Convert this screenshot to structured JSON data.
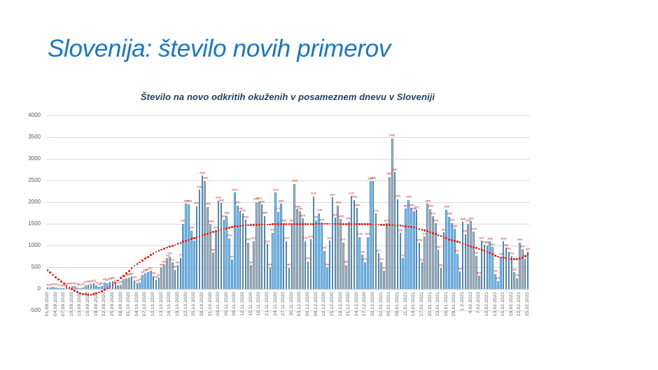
{
  "slide": {
    "title": "Slovenija: število novih primerov"
  },
  "chart_data": {
    "type": "bar",
    "title": "Število na novo odkritih okuženih v posameznem dnevu v Sloveniji",
    "xlabel": "",
    "ylabel": "",
    "ylim": [
      -500,
      4000
    ],
    "grid": true,
    "legend": false,
    "yticks": [
      4000,
      3500,
      3000,
      2500,
      2000,
      1500,
      1000,
      500,
      0,
      -500
    ],
    "x_tick_every": 3,
    "x_tick_labels": [
      "01.09.2020",
      "04.09.2020",
      "07.09.2020",
      "10.09.2020",
      "13.09.2020",
      "16.09.2020",
      "19.09.2020",
      "22.09.2020",
      "25.09.2020",
      "28.09.2020",
      "01.10.2020",
      "04.10.2020",
      "07.10.2020",
      "10.10.2020",
      "13.10.2020",
      "16.10.2020",
      "19.10.2020",
      "22.10.2020",
      "25.10.2020",
      "28.10.2020",
      "31.10.2020",
      "03.11.2020",
      "06.11.2020",
      "09.11.2020",
      "12.11.2020",
      "15.11.2020",
      "18.11.2020",
      "21.11.2020",
      "24.11.2020",
      "27.11.2020",
      "30.11.2020",
      "03.12.2020",
      "06.12.2020",
      "09.12.2020",
      "12.12.2020",
      "15.12.2020",
      "18.12.2020",
      "21.12.2020",
      "24.12.2020",
      "27.12.2020",
      "30.12.2020",
      "02.01.2021",
      "05.01.2021",
      "08.01.2021",
      "11.01.2021",
      "14.01.2021",
      "17.01.2021",
      "20.01.2021",
      "23.01.2021",
      "26.01.2021",
      "29.01.2021",
      "1.2.2021",
      "4.02.2022",
      "7.02.2022",
      "10.02.2021",
      "13.02.2021",
      "16.02.2021",
      "19.02.2021",
      "22.02.2021",
      "25.02.2021"
    ],
    "values": [
      30,
      29,
      43,
      37,
      21,
      14,
      16,
      53,
      49,
      57,
      62,
      38,
      22,
      34,
      87,
      98,
      111,
      123,
      74,
      46,
      58,
      146,
      137,
      168,
      183,
      119,
      73,
      95,
      218,
      242,
      260,
      287,
      194,
      123,
      146,
      321,
      356,
      387,
      412,
      298,
      205,
      257,
      498,
      564,
      708,
      745,
      612,
      437,
      541,
      717,
      1503,
      1964,
      1954,
      1344,
      1106,
      1904,
      2286,
      2606,
      2484,
      1892,
      1498,
      834,
      1341,
      2039,
      1983,
      1602,
      1682,
      1167,
      672,
      2223,
      1921,
      1787,
      1737,
      1590,
      1067,
      544,
      1100,
      2004,
      2022,
      1945,
      1685,
      1027,
      498,
      1296,
      2222,
      1779,
      1964,
      1506,
      1102,
      487,
      1508,
      2425,
      1834,
      1784,
      1625,
      1102,
      632,
      1140,
      2133,
      1587,
      1743,
      1529,
      875,
      498,
      1107,
      2107,
      1641,
      1925,
      1606,
      1071,
      549,
      1549,
      2142,
      2056,
      1869,
      1196,
      784,
      620,
      1201,
      2480,
      2488,
      1741,
      817,
      613,
      412,
      1512,
      2585,
      3468,
      2687,
      2069,
      1287,
      706,
      1851,
      2052,
      1868,
      1786,
      1821,
      1058,
      612,
      1209,
      1965,
      1842,
      1673,
      1516,
      903,
      481,
      1305,
      1828,
      1668,
      1521,
      1385,
      812,
      403,
      1548,
      1263,
      1501,
      1561,
      1318,
      762,
      303,
      1107,
      1012,
      1006,
      1096,
      962,
      342,
      178,
      726,
      1093,
      948,
      861,
      754,
      383,
      248,
      1069,
      912,
      694,
      847
    ],
    "bar_labels_shown": true,
    "trend": {
      "type": "dotted-trendline",
      "color": "#F8160C",
      "points": [
        [
          0,
          430
        ],
        [
          4,
          215
        ],
        [
          8,
          25
        ],
        [
          12,
          -110
        ],
        [
          16,
          -140
        ],
        [
          20,
          -60
        ],
        [
          24,
          90
        ],
        [
          28,
          300
        ],
        [
          32,
          530
        ],
        [
          36,
          700
        ],
        [
          40,
          855
        ],
        [
          44,
          950
        ],
        [
          47,
          1015
        ],
        [
          50,
          1085
        ],
        [
          53,
          1150
        ],
        [
          56,
          1210
        ],
        [
          60,
          1290
        ],
        [
          64,
          1370
        ],
        [
          68,
          1430
        ],
        [
          72,
          1462
        ],
        [
          76,
          1478
        ],
        [
          85,
          1490
        ],
        [
          95,
          1497
        ],
        [
          105,
          1498
        ],
        [
          112,
          1496
        ],
        [
          118,
          1490
        ],
        [
          124,
          1478
        ],
        [
          130,
          1457
        ],
        [
          135,
          1420
        ],
        [
          140,
          1330
        ],
        [
          145,
          1215
        ],
        [
          148,
          1140
        ],
        [
          151,
          1090
        ],
        [
          155,
          1000
        ],
        [
          160,
          900
        ],
        [
          163,
          830
        ],
        [
          166,
          740
        ],
        [
          169,
          700
        ],
        [
          171,
          688
        ],
        [
          173,
          690
        ],
        [
          175,
          715
        ],
        [
          176,
          750
        ],
        [
          177,
          800
        ]
      ]
    },
    "colors": {
      "bar_fill": "#A9C9E8",
      "bar_border": "#4E87C0",
      "bar_label": "#C00000",
      "trend_dot": "#F8160C",
      "gridline": "#D9D9D9",
      "axis_text": "#595959",
      "slide_title": "#1878C6",
      "chart_title": "#1F4264"
    }
  }
}
